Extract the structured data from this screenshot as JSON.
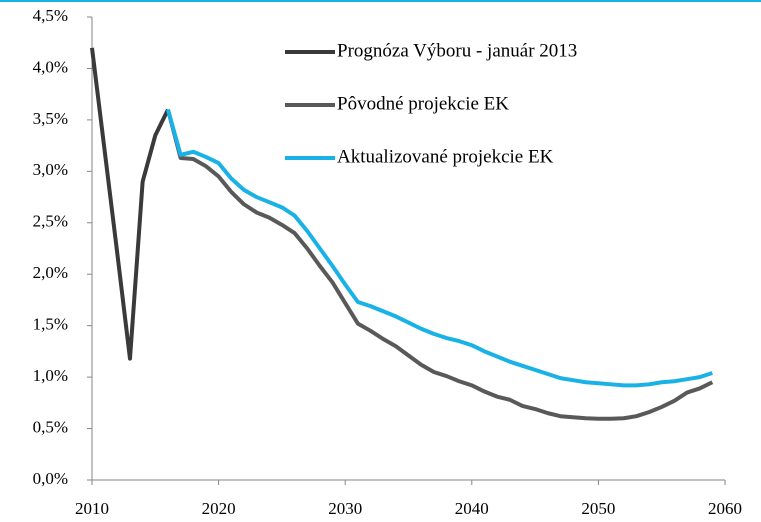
{
  "chart_data": {
    "type": "line",
    "xlim": [
      2010,
      2060
    ],
    "xticks": [
      2010,
      2020,
      2030,
      2040,
      2050,
      2060
    ],
    "ylim": [
      0,
      4.5
    ],
    "yticks": [
      {
        "value": 0,
        "label": "0,0%"
      },
      {
        "value": 0.5,
        "label": "0,5%"
      },
      {
        "value": 1,
        "label": "1,0%"
      },
      {
        "value": 1.5,
        "label": "1,5%"
      },
      {
        "value": 2,
        "label": "2,0%"
      },
      {
        "value": 2.5,
        "label": "2,5%"
      },
      {
        "value": 3,
        "label": "3,0%"
      },
      {
        "value": 3.5,
        "label": "3,5%"
      },
      {
        "value": 4,
        "label": "4,0%"
      },
      {
        "value": 4.5,
        "label": "4,5%"
      }
    ],
    "grid": false,
    "legend": "top-right",
    "series": [
      {
        "name": "Prognóza Výboru - január 2013",
        "color": "#3a3a3a",
        "x": [
          2010,
          2011,
          2012,
          2013,
          2014,
          2015,
          2016
        ],
        "values": [
          4.2,
          3.2,
          2.2,
          1.18,
          2.9,
          3.35,
          3.6
        ]
      },
      {
        "name": "Pôvodné projekcie EK",
        "color": "#595959",
        "x": [
          2016,
          2017,
          2018,
          2019,
          2020,
          2021,
          2022,
          2023,
          2024,
          2025,
          2026,
          2027,
          2028,
          2029,
          2030,
          2031,
          2032,
          2033,
          2034,
          2035,
          2036,
          2037,
          2038,
          2039,
          2040,
          2041,
          2042,
          2043,
          2044,
          2045,
          2046,
          2047,
          2048,
          2049,
          2050,
          2051,
          2052,
          2053,
          2054,
          2055,
          2056,
          2057,
          2058,
          2059
        ],
        "values": [
          3.6,
          3.13,
          3.12,
          3.05,
          2.95,
          2.8,
          2.68,
          2.6,
          2.55,
          2.48,
          2.4,
          2.25,
          2.08,
          1.92,
          1.72,
          1.52,
          1.45,
          1.37,
          1.3,
          1.21,
          1.12,
          1.05,
          1.01,
          0.96,
          0.92,
          0.86,
          0.81,
          0.78,
          0.72,
          0.69,
          0.65,
          0.62,
          0.61,
          0.6,
          0.595,
          0.595,
          0.6,
          0.62,
          0.66,
          0.71,
          0.77,
          0.85,
          0.89,
          0.95
        ]
      },
      {
        "name": "Aktualizované projekcie EK",
        "color": "#1ab2e6",
        "x": [
          2016,
          2017,
          2018,
          2019,
          2020,
          2021,
          2022,
          2023,
          2024,
          2025,
          2026,
          2027,
          2028,
          2029,
          2030,
          2031,
          2032,
          2033,
          2034,
          2035,
          2036,
          2037,
          2038,
          2039,
          2040,
          2041,
          2042,
          2043,
          2044,
          2045,
          2046,
          2047,
          2048,
          2049,
          2050,
          2051,
          2052,
          2053,
          2054,
          2055,
          2056,
          2057,
          2058,
          2059
        ],
        "values": [
          3.6,
          3.16,
          3.19,
          3.14,
          3.08,
          2.93,
          2.82,
          2.75,
          2.7,
          2.65,
          2.57,
          2.42,
          2.25,
          2.08,
          1.9,
          1.73,
          1.69,
          1.64,
          1.59,
          1.53,
          1.47,
          1.42,
          1.38,
          1.35,
          1.31,
          1.25,
          1.2,
          1.15,
          1.11,
          1.07,
          1.03,
          0.99,
          0.97,
          0.95,
          0.94,
          0.93,
          0.92,
          0.92,
          0.93,
          0.95,
          0.96,
          0.98,
          1.0,
          1.04
        ]
      }
    ]
  }
}
